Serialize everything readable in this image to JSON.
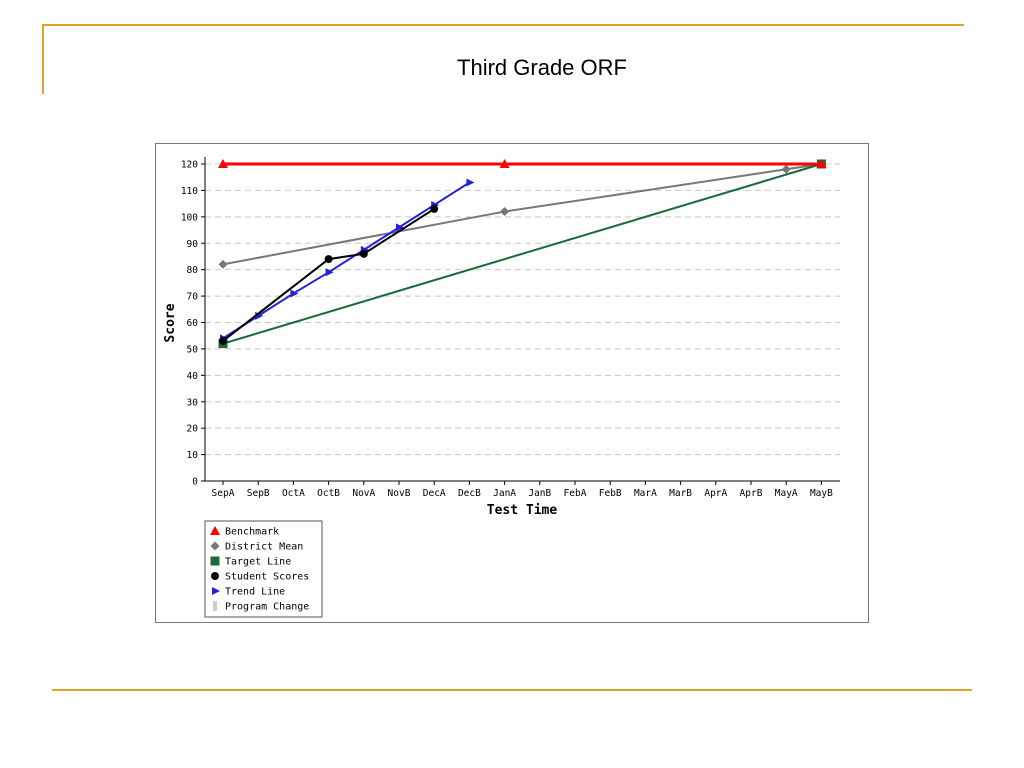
{
  "slide": {
    "title": "Third Grade ORF"
  },
  "chart_data": {
    "type": "line",
    "title": "",
    "xlabel": "Test Time",
    "ylabel": "Score",
    "categories": [
      "SepA",
      "SepB",
      "OctA",
      "OctB",
      "NovA",
      "NovB",
      "DecA",
      "DecB",
      "JanA",
      "JanB",
      "FebA",
      "FebB",
      "MarA",
      "MarB",
      "AprA",
      "AprB",
      "MayA",
      "MayB"
    ],
    "yticks": [
      0,
      10,
      20,
      30,
      40,
      50,
      60,
      70,
      80,
      90,
      100,
      110,
      120
    ],
    "ylim": [
      0,
      120
    ],
    "grid": "horizontal-dashed",
    "legend_position": "bottom-left",
    "series": [
      {
        "name": "Benchmark",
        "color": "#ff0000",
        "marker": "triangle",
        "points": [
          [
            0,
            120
          ],
          [
            8,
            120
          ],
          [
            17,
            120
          ]
        ]
      },
      {
        "name": "District Mean",
        "color": "#777777",
        "marker": "diamond",
        "points": [
          [
            0,
            82
          ],
          [
            8,
            102
          ],
          [
            16,
            118
          ],
          [
            17,
            120
          ]
        ]
      },
      {
        "name": "Target Line",
        "color": "#1a6b3a",
        "marker": "square",
        "points": [
          [
            0,
            52
          ],
          [
            17,
            120
          ]
        ]
      },
      {
        "name": "Student Scores",
        "color": "#000000",
        "marker": "circle",
        "points": [
          [
            0,
            53
          ],
          [
            3,
            84
          ],
          [
            4,
            86
          ],
          [
            6,
            103
          ]
        ]
      },
      {
        "name": "Trend Line",
        "color": "#2222dd",
        "marker": "arrow",
        "points": [
          [
            0,
            54
          ],
          [
            1,
            62.5
          ],
          [
            2,
            71
          ],
          [
            3,
            79
          ],
          [
            4,
            87.5
          ],
          [
            5,
            96
          ],
          [
            6,
            104.5
          ],
          [
            7,
            113
          ]
        ]
      },
      {
        "name": "Program Change",
        "color": "#cccccc",
        "marker": "bar",
        "points": []
      }
    ]
  }
}
